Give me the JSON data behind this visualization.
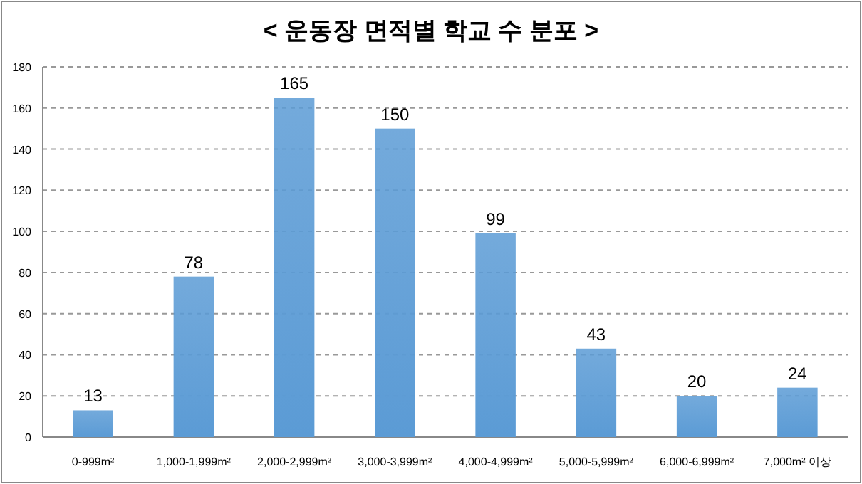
{
  "chart_data": {
    "type": "bar",
    "title": "< 운동장 면적별 학교 수 분포 >",
    "categories": [
      "0-999m²",
      "1,000-1,999m²",
      "2,000-2,999m²",
      "3,000-3,999m²",
      "4,000-4,999m²",
      "5,000-5,999m²",
      "6,000-6,999m²",
      "7,000m² 이상"
    ],
    "values": [
      13,
      78,
      165,
      150,
      99,
      43,
      20,
      24
    ],
    "color": "#5b9bd5",
    "ylim": [
      0,
      180
    ],
    "yticks": [
      0,
      20,
      40,
      60,
      80,
      100,
      120,
      140,
      160,
      180
    ],
    "grid": "y",
    "data_labels": true
  }
}
